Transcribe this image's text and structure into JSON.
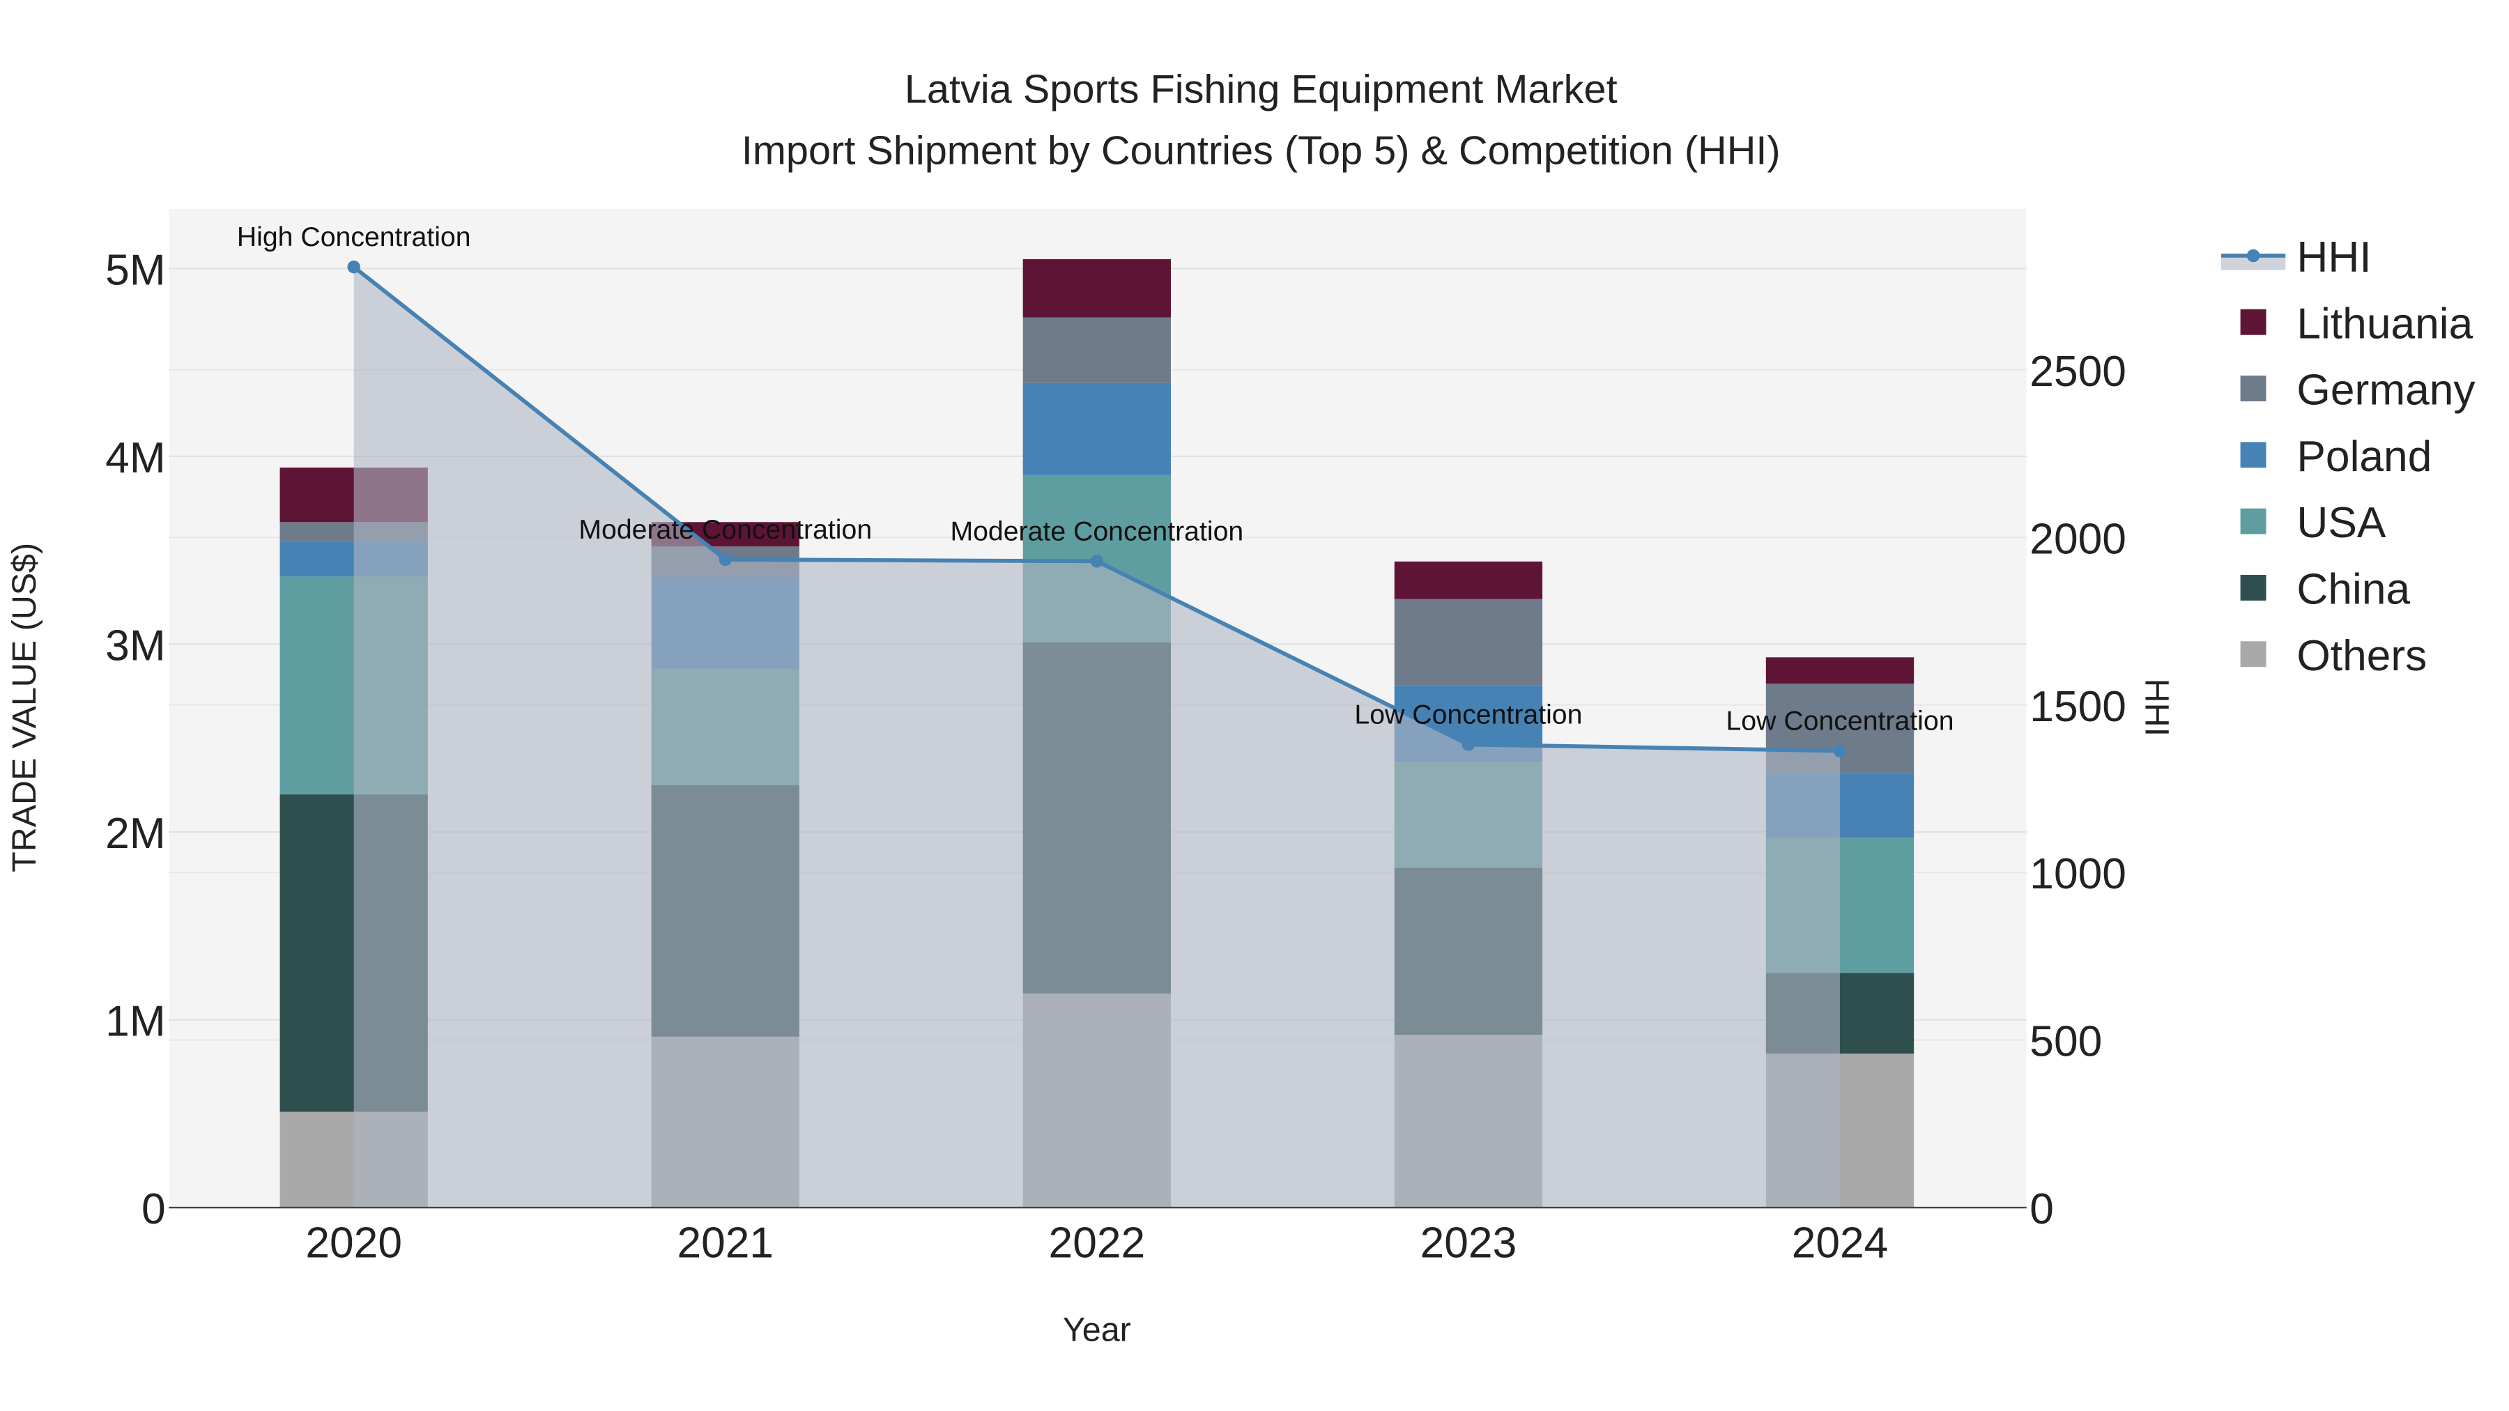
{
  "chart_data": {
    "type": "bar",
    "title": "Latvia Sports Fishing Equipment Market",
    "subtitle": "Import Shipment by Countries (Top 5) & Competition (HHI)",
    "xlabel": "Year",
    "ylabel": "TRADE VALUE (US$)",
    "y2label": "HHI",
    "categories": [
      "2020",
      "2021",
      "2022",
      "2023",
      "2024"
    ],
    "ylim": [
      0,
      5300000
    ],
    "y2lim": [
      0,
      2950
    ],
    "yticks": [
      0,
      1000000,
      2000000,
      3000000,
      4000000,
      5000000
    ],
    "ytick_labels": [
      "0",
      "1M",
      "2M",
      "3M",
      "4M",
      "5M"
    ],
    "y2ticks": [
      0,
      500,
      1000,
      1500,
      2000,
      2500
    ],
    "y2tick_labels": [
      "0",
      "500",
      "1000",
      "1500",
      "2000",
      "2500"
    ],
    "stacked": true,
    "series": [
      {
        "name": "Others",
        "color": "#a9a9a9",
        "values": [
          510000,
          910000,
          1140000,
          920000,
          820000
        ]
      },
      {
        "name": "China",
        "color": "#2f4f4f",
        "values": [
          1690000,
          1340000,
          1870000,
          890000,
          430000
        ]
      },
      {
        "name": "USA",
        "color": "#5f9ea0",
        "values": [
          1160000,
          620000,
          890000,
          560000,
          720000
        ]
      },
      {
        "name": "Poland",
        "color": "#4682b4",
        "values": [
          190000,
          490000,
          490000,
          410000,
          340000
        ]
      },
      {
        "name": "Germany",
        "color": "#6e7b8b",
        "values": [
          100000,
          160000,
          350000,
          460000,
          480000
        ]
      },
      {
        "name": "Lithuania",
        "color": "#5e1535",
        "values": [
          290000,
          130000,
          310000,
          200000,
          140000
        ]
      }
    ],
    "line": {
      "name": "HHI",
      "color": "#4682b4",
      "axis": "right",
      "values": [
        2807,
        1934,
        1929,
        1382,
        1363
      ],
      "annotations": [
        "High Concentration",
        "Moderate Concentration",
        "Moderate Concentration",
        "Low Concentration",
        "Low Concentration"
      ]
    },
    "legend_placement": "right",
    "legend_order": [
      "HHI",
      "Lithuania",
      "Germany",
      "Poland",
      "USA",
      "China",
      "Others"
    ],
    "grid": true
  }
}
